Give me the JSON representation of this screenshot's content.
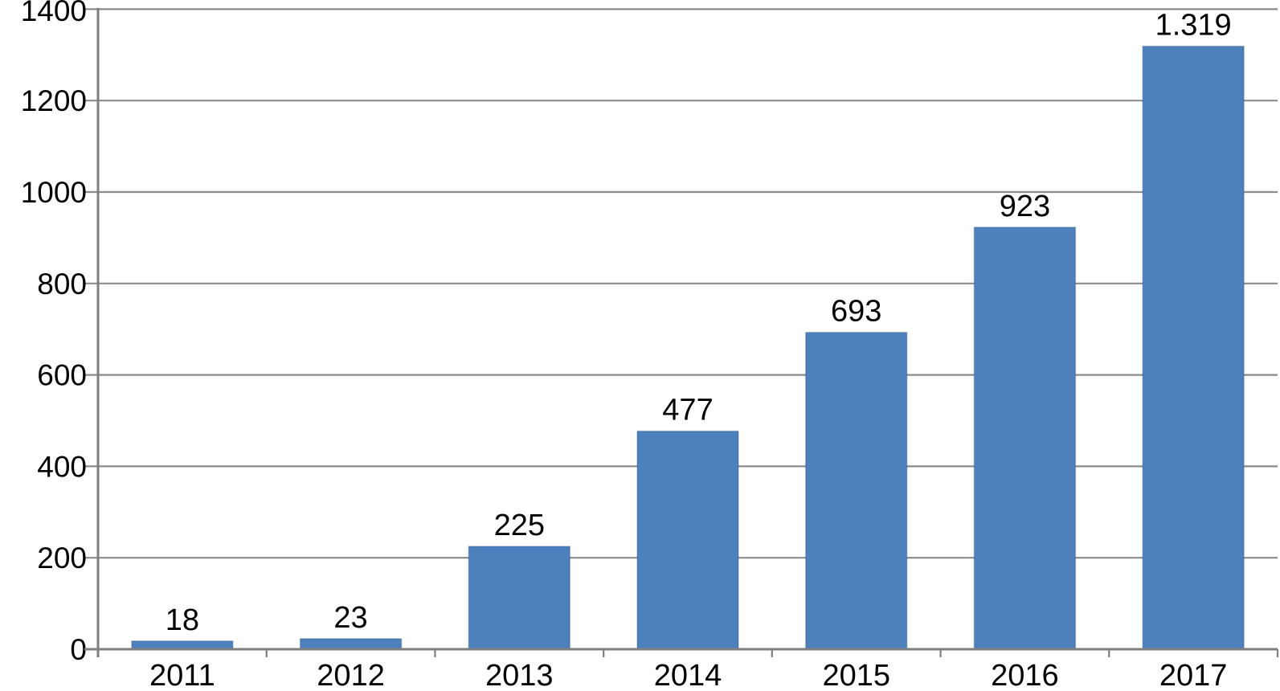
{
  "chart_data": {
    "type": "bar",
    "title": "",
    "xlabel": "",
    "ylabel": "",
    "categories": [
      "2011",
      "2012",
      "2013",
      "2014",
      "2015",
      "2016",
      "2017"
    ],
    "values": [
      18,
      23,
      225,
      477,
      693,
      923,
      1319
    ],
    "value_labels": [
      "18",
      "23",
      "225",
      "477",
      "693",
      "923",
      "1.319"
    ],
    "ylim": [
      0,
      1400
    ],
    "ytick_interval": 200,
    "ytick_labels": [
      "0",
      "200",
      "400",
      "600",
      "800",
      "1000",
      "1200",
      "1400"
    ],
    "grid": true,
    "legend": false,
    "colors": {
      "bar_fill": "#4D81BD",
      "bar_edge": "rgba(30,60,100,0.25)",
      "gridline": "#8C8C8C",
      "axis": "#7F7F7F",
      "text": "#000000",
      "background": "#FFFFFF"
    }
  }
}
